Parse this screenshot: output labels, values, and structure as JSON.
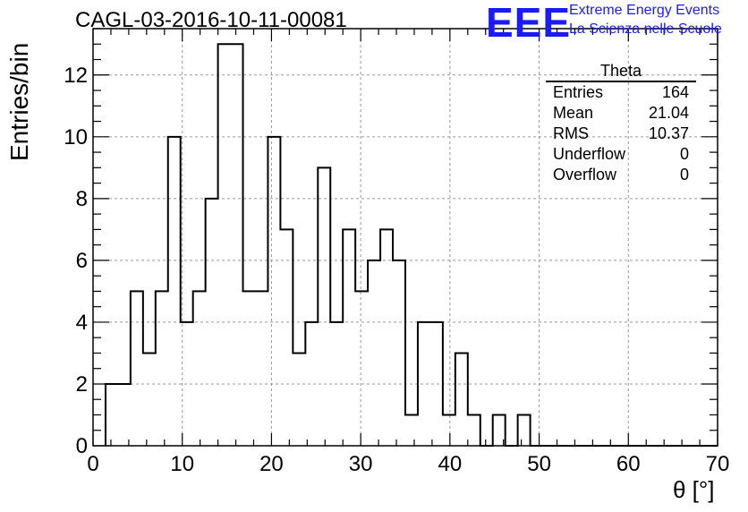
{
  "title": "CAGL-03-2016-10-11-00081",
  "logo": {
    "mark": "EEE",
    "line1": "Extreme Energy Events",
    "line2": "La Scienza nelle Scuole",
    "color": "#1a1aff"
  },
  "stats_box": {
    "title": "Theta",
    "rows": [
      {
        "label": "Entries",
        "value": "164"
      },
      {
        "label": "Mean",
        "value": "21.04"
      },
      {
        "label": "RMS",
        "value": "10.37"
      },
      {
        "label": "Underflow",
        "value": "0"
      },
      {
        "label": "Overflow",
        "value": "0"
      }
    ]
  },
  "chart_data": {
    "type": "bar",
    "style": "step-histogram",
    "title": "CAGL-03-2016-10-11-00081",
    "xlabel": "θ [°]",
    "ylabel": "Entries/bin",
    "xlim": [
      0,
      70
    ],
    "ylim": [
      0,
      13.5
    ],
    "grid": true,
    "x_ticks": [
      0,
      10,
      20,
      30,
      40,
      50,
      60,
      70
    ],
    "y_ticks": [
      0,
      2,
      4,
      6,
      8,
      10,
      12
    ],
    "bin_edges_start": 1.4,
    "bin_width": 1.4,
    "values": [
      2,
      2,
      5,
      3,
      5,
      10,
      4,
      5,
      8,
      13,
      13,
      5,
      5,
      10,
      7,
      3,
      4,
      9,
      4,
      7,
      5,
      6,
      7,
      6,
      1,
      4,
      4,
      1,
      3,
      1,
      0,
      1,
      0,
      1,
      0,
      0,
      0,
      0,
      0,
      0,
      0,
      0,
      0,
      0,
      0,
      0,
      0,
      0,
      0
    ],
    "line_color": "#000000"
  }
}
